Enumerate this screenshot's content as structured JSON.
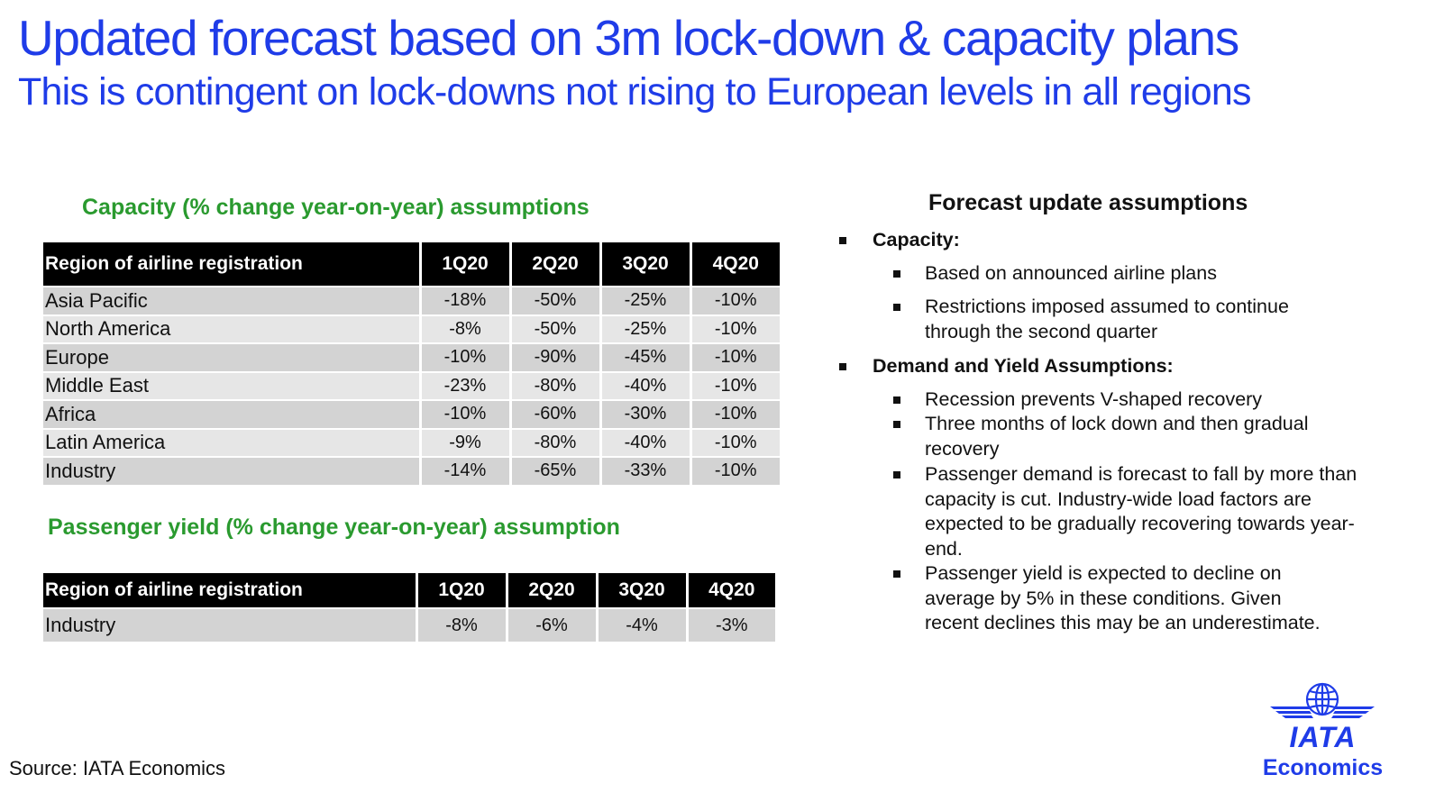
{
  "header": {
    "title": "Updated forecast based on 3m lock-down & capacity plans",
    "subtitle": "This is contingent on lock-downs not rising to European levels in all regions"
  },
  "capacity": {
    "heading": "Capacity (% change year-on-year) assumptions",
    "columns": [
      "Region of  airline registration",
      "1Q20",
      "2Q20",
      "3Q20",
      "4Q20"
    ],
    "rows": [
      [
        "Asia Pacific",
        "-18%",
        "-50%",
        "-25%",
        "-10%"
      ],
      [
        "North America",
        "-8%",
        "-50%",
        "-25%",
        "-10%"
      ],
      [
        "Europe",
        "-10%",
        "-90%",
        "-45%",
        "-10%"
      ],
      [
        "Middle East",
        "-23%",
        "-80%",
        "-40%",
        "-10%"
      ],
      [
        "Africa",
        "-10%",
        "-60%",
        "-30%",
        "-10%"
      ],
      [
        "Latin America",
        "-9%",
        "-80%",
        "-40%",
        "-10%"
      ],
      [
        "Industry",
        "-14%",
        "-65%",
        "-33%",
        "-10%"
      ]
    ]
  },
  "yield": {
    "heading": "Passenger yield (% change year-on-year) assumption",
    "columns": [
      "Region of  airline registration",
      "1Q20",
      "2Q20",
      "3Q20",
      "4Q20"
    ],
    "rows": [
      [
        "Industry",
        "-8%",
        "-6%",
        "-4%",
        "-3%"
      ]
    ]
  },
  "assumptions": {
    "title": "Forecast update assumptions",
    "capacity_label": "Capacity:",
    "capacity_points": [
      "Based on announced airline plans",
      "Restrictions imposed assumed to continue through the second quarter"
    ],
    "demand_label": "Demand and Yield Assumptions:",
    "demand_points": [
      "Recession prevents V-shaped recovery",
      "Three months of lock down and then gradual recovery",
      "Passenger demand is forecast to fall by more than capacity is cut. Industry-wide load factors are expected to be gradually recovering towards year-end.",
      "Passenger yield is expected to decline on average by 5% in these conditions. Given recent declines this may be an underestimate."
    ]
  },
  "footer": {
    "source": "Source: IATA Economics",
    "logo_word": "IATA",
    "logo_sub": "Economics"
  },
  "colors": {
    "title_blue": "#1f3ce8",
    "heading_green": "#2a9a2f",
    "table_header": "#000000",
    "row_dark": "#d3d3d3",
    "row_light": "#e6e6e6"
  },
  "icons": [
    "square-bullet-icon",
    "globe-wings-icon"
  ]
}
